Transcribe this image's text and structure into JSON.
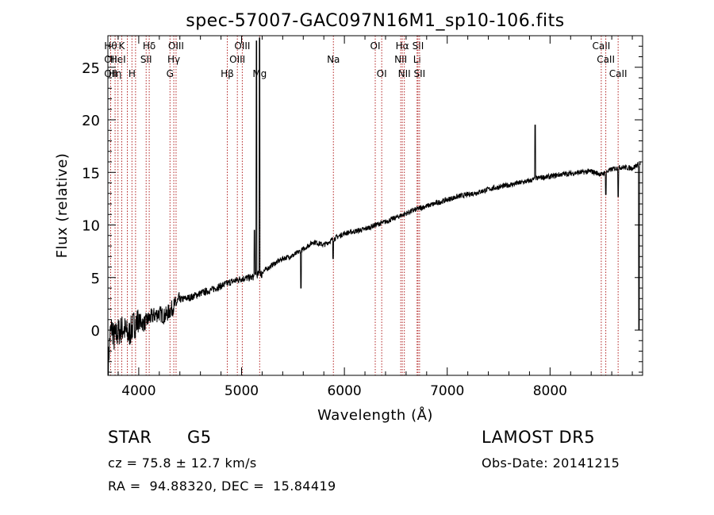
{
  "chart_data": {
    "type": "line",
    "title": "spec-57007-GAC097N16M1_sp10-106.fits",
    "xlabel": "Wavelength (Å)",
    "ylabel": "Flux (relative)",
    "xlim": [
      3700,
      8900
    ],
    "ylim": [
      -4.3,
      28
    ],
    "xticks": [
      4000,
      5000,
      6000,
      7000,
      8000
    ],
    "yticks": [
      0,
      5,
      10,
      15,
      20,
      25
    ],
    "grid": false,
    "line_color": "#000000",
    "marker_color": "#b22222",
    "spectrum_anchors": [
      [
        3705,
        -3.2
      ],
      [
        3720,
        -0.5
      ],
      [
        3740,
        0.3
      ],
      [
        3760,
        -0.8
      ],
      [
        3800,
        -0.2
      ],
      [
        3850,
        0.2
      ],
      [
        3900,
        -0.5
      ],
      [
        3950,
        0.5
      ],
      [
        4000,
        0.9
      ],
      [
        4050,
        0.6
      ],
      [
        4100,
        1.1
      ],
      [
        4150,
        1.4
      ],
      [
        4200,
        1.6
      ],
      [
        4250,
        1.3
      ],
      [
        4300,
        1.8
      ],
      [
        4350,
        2.4
      ],
      [
        4400,
        2.9
      ],
      [
        4500,
        3.1
      ],
      [
        4600,
        3.5
      ],
      [
        4700,
        3.8
      ],
      [
        4800,
        4.2
      ],
      [
        4900,
        4.6
      ],
      [
        5000,
        4.9
      ],
      [
        5100,
        5.0
      ],
      [
        5200,
        5.5
      ],
      [
        5300,
        6.2
      ],
      [
        5400,
        6.8
      ],
      [
        5500,
        7.1
      ],
      [
        5600,
        7.7
      ],
      [
        5700,
        8.4
      ],
      [
        5800,
        8.1
      ],
      [
        5900,
        8.7
      ],
      [
        6000,
        9.2
      ],
      [
        6100,
        9.4
      ],
      [
        6200,
        9.6
      ],
      [
        6300,
        10.0
      ],
      [
        6400,
        10.3
      ],
      [
        6500,
        10.7
      ],
      [
        6600,
        11.1
      ],
      [
        6700,
        11.5
      ],
      [
        6800,
        11.8
      ],
      [
        6900,
        12.1
      ],
      [
        7000,
        12.4
      ],
      [
        7100,
        12.7
      ],
      [
        7200,
        12.9
      ],
      [
        7300,
        13.1
      ],
      [
        7400,
        13.4
      ],
      [
        7500,
        13.6
      ],
      [
        7600,
        13.8
      ],
      [
        7700,
        14.0
      ],
      [
        7800,
        14.2
      ],
      [
        7900,
        14.5
      ],
      [
        8000,
        14.6
      ],
      [
        8100,
        14.8
      ],
      [
        8200,
        14.9
      ],
      [
        8300,
        15.0
      ],
      [
        8400,
        15.1
      ],
      [
        8500,
        14.8
      ],
      [
        8600,
        15.3
      ],
      [
        8700,
        15.5
      ],
      [
        8800,
        15.4
      ],
      [
        8880,
        15.9
      ]
    ],
    "spikes": [
      {
        "x": 5125,
        "y": 9.5
      },
      {
        "x": 5145,
        "y": 27.5
      },
      {
        "x": 5175,
        "y": 27.8
      },
      {
        "x": 5195,
        "y": 5.0
      },
      {
        "x": 5577,
        "y": 4.0
      },
      {
        "x": 5890,
        "y": 6.8
      },
      {
        "x": 7855,
        "y": 19.5
      },
      {
        "x": 8542,
        "y": 12.9
      },
      {
        "x": 8662,
        "y": 12.7
      },
      {
        "x": 8865,
        "y": 0.0
      }
    ],
    "line_markers": [
      {
        "x": 3727,
        "row": 0,
        "label": "Hθ"
      },
      {
        "x": 3727,
        "row": 1,
        "label": "OII"
      },
      {
        "x": 3727,
        "row": 2,
        "label": "OII"
      },
      {
        "x": 3770,
        "row": 2,
        "label": "Hη"
      },
      {
        "x": 3798,
        "row": 1,
        "label": "HeI"
      },
      {
        "x": 3835,
        "row": 0,
        "label": "K"
      },
      {
        "x": 3889,
        "row": 0,
        "label": ""
      },
      {
        "x": 3934,
        "row": 2,
        "label": "H"
      },
      {
        "x": 3969,
        "row": 0,
        "label": ""
      },
      {
        "x": 4072,
        "row": 1,
        "label": "SII"
      },
      {
        "x": 4102,
        "row": 0,
        "label": "Hδ"
      },
      {
        "x": 4304,
        "row": 2,
        "label": "G"
      },
      {
        "x": 4341,
        "row": 1,
        "label": "Hγ"
      },
      {
        "x": 4363,
        "row": 0,
        "label": "OIII"
      },
      {
        "x": 4861,
        "row": 2,
        "label": "Hβ"
      },
      {
        "x": 4959,
        "row": 1,
        "label": "OIII"
      },
      {
        "x": 5007,
        "row": 0,
        "label": "OIII"
      },
      {
        "x": 5176,
        "row": 2,
        "label": "Mg"
      },
      {
        "x": 5893,
        "row": 1,
        "label": "Na"
      },
      {
        "x": 6300,
        "row": 0,
        "label": "OI"
      },
      {
        "x": 6363,
        "row": 2,
        "label": "OI"
      },
      {
        "x": 6548,
        "row": 1,
        "label": "NII"
      },
      {
        "x": 6563,
        "row": 0,
        "label": "Hα"
      },
      {
        "x": 6583,
        "row": 2,
        "label": "NII"
      },
      {
        "x": 6707,
        "row": 1,
        "label": "Li"
      },
      {
        "x": 6716,
        "row": 0,
        "label": "SII"
      },
      {
        "x": 6731,
        "row": 2,
        "label": "SII"
      },
      {
        "x": 8498,
        "row": 0,
        "label": "CaII"
      },
      {
        "x": 8542,
        "row": 1,
        "label": "CaII"
      },
      {
        "x": 8662,
        "row": 2,
        "label": "CaII"
      }
    ]
  },
  "info": {
    "class": "STAR",
    "subclass": "G5",
    "survey": "LAMOST DR5",
    "cz": "cz = 75.8 ± 12.7 km/s",
    "obs_date": "Obs-Date: 20141215",
    "coords": "RA =  94.88320, DEC =  15.84419"
  }
}
